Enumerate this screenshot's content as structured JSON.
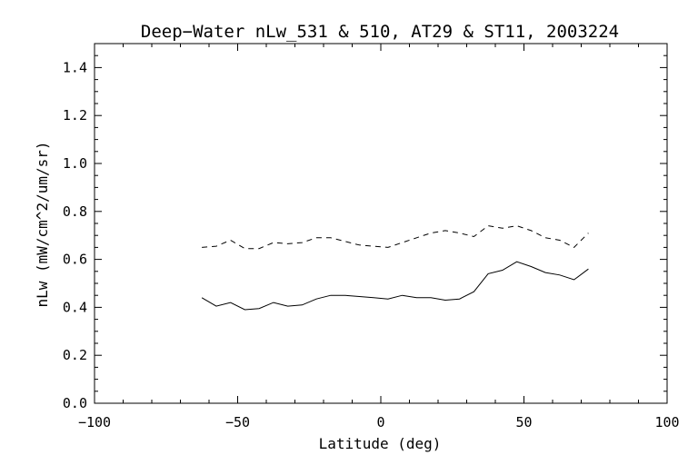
{
  "chart_data": {
    "type": "line",
    "title": "Deep−Water nLw_531 & 510, AT29 & ST11, 2003224",
    "xlabel": "Latitude (deg)",
    "ylabel": "nLw (mW/cm^2/um/sr)",
    "xlim": [
      -100,
      100
    ],
    "ylim": [
      0.0,
      1.5
    ],
    "xticks": [
      -100,
      -50,
      0,
      50,
      100
    ],
    "xtick_labels": [
      "−100",
      "−50",
      "0",
      "50",
      "100"
    ],
    "yticks": [
      0.0,
      0.2,
      0.4,
      0.6,
      0.8,
      1.0,
      1.2,
      1.4
    ],
    "ytick_labels": [
      "0.0",
      "0.2",
      "0.4",
      "0.6",
      "0.8",
      "1.0",
      "1.2",
      "1.4"
    ],
    "grid": false,
    "series": [
      {
        "style": "solid",
        "x": [
          -62.5,
          -57.5,
          -52.5,
          -47.5,
          -42.5,
          -37.5,
          -32.5,
          -27.5,
          -22.5,
          -17.5,
          -12.5,
          -7.5,
          -2.5,
          2.5,
          7.5,
          12.5,
          17.5,
          22.5,
          27.5,
          32.5,
          37.5,
          42.5,
          47.5,
          52.5,
          57.5,
          62.5,
          67.5,
          72.5
        ],
        "y": [
          0.44,
          0.405,
          0.42,
          0.39,
          0.395,
          0.42,
          0.405,
          0.41,
          0.435,
          0.45,
          0.45,
          0.445,
          0.44,
          0.435,
          0.45,
          0.44,
          0.44,
          0.43,
          0.435,
          0.465,
          0.54,
          0.555,
          0.59,
          0.57,
          0.545,
          0.535,
          0.515,
          0.56
        ]
      },
      {
        "style": "dashed",
        "x": [
          -62.5,
          -57.5,
          -52.5,
          -47.5,
          -42.5,
          -37.5,
          -32.5,
          -27.5,
          -22.5,
          -17.5,
          -12.5,
          -7.5,
          -2.5,
          2.5,
          7.5,
          12.5,
          17.5,
          22.5,
          27.5,
          32.5,
          37.5,
          42.5,
          47.5,
          52.5,
          57.5,
          62.5,
          67.5,
          72.5
        ],
        "y": [
          0.65,
          0.655,
          0.68,
          0.645,
          0.645,
          0.67,
          0.665,
          0.67,
          0.69,
          0.69,
          0.675,
          0.66,
          0.655,
          0.65,
          0.67,
          0.69,
          0.71,
          0.72,
          0.71,
          0.695,
          0.74,
          0.73,
          0.74,
          0.72,
          0.69,
          0.68,
          0.65,
          0.71
        ]
      }
    ]
  }
}
